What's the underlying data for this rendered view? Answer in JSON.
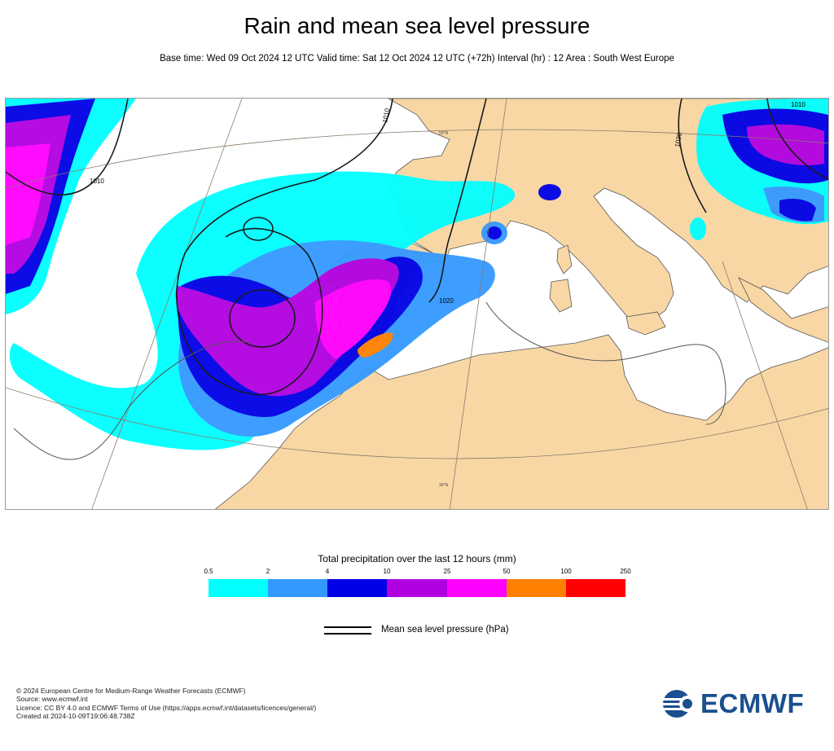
{
  "header": {
    "title": "Rain and mean sea level pressure",
    "subtitle": "Base time: Wed 09 Oct 2024 12 UTC Valid time: Sat 12 Oct 2024 12 UTC (+72h) Interval (hr) : 12 Area : South West Europe"
  },
  "map": {
    "contour_labels": [
      "1010",
      "1010",
      "1010",
      "1020",
      "1020"
    ],
    "latitude_labels": [
      "50°N",
      "30°N"
    ]
  },
  "legend": {
    "title": "Total precipitation over the last 12 hours (mm)",
    "ticks": [
      "0.5",
      "2",
      "4",
      "10",
      "25",
      "50",
      "100",
      "250"
    ],
    "colors": [
      "#00ffff",
      "#3399ff",
      "#0000e6",
      "#b000e0",
      "#ff00ff",
      "#ff8000",
      "#ff0000"
    ],
    "mslp_label": "Mean sea level pressure (hPa)"
  },
  "footer": {
    "lines": [
      "© 2024 European Centre for Medium-Range Weather Forecasts (ECMWF)",
      "Source: www.ecmwf.int",
      "Licence: CC BY 4.0 and ECMWF Terms of Use (https://apps.ecmwf.int/datasets/licences/general/)",
      "Created at 2024-10-09T19:06:48.738Z"
    ],
    "logo_text": "ECMWF",
    "logo_color": "#1b4f8f"
  }
}
